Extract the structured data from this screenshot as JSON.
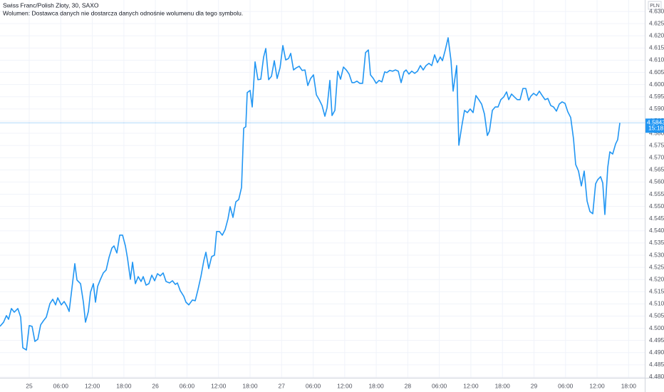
{
  "chart_data": {
    "type": "line",
    "title": "Swiss Franc/Polish Zloty, 30, SAXO",
    "subtitle": "Wolumen: Dostawca danych nie dostarcza danych odnośnie wolumenu dla tego symbolu.",
    "y_axis_unit": "PLN",
    "grid": true,
    "xlim": [
      -5.56,
      117.07
    ],
    "xticks": [
      {
        "value": 0,
        "label": "25"
      },
      {
        "value": 6,
        "label": "06:00"
      },
      {
        "value": 12,
        "label": "12:00"
      },
      {
        "value": 18,
        "label": "18:00"
      },
      {
        "value": 24,
        "label": "26"
      },
      {
        "value": 30,
        "label": "06:00"
      },
      {
        "value": 36,
        "label": "12:00"
      },
      {
        "value": 42,
        "label": "18:00"
      },
      {
        "value": 48,
        "label": "27"
      },
      {
        "value": 54,
        "label": "06:00"
      },
      {
        "value": 60,
        "label": "12:00"
      },
      {
        "value": 66,
        "label": "18:00"
      },
      {
        "value": 72,
        "label": "28"
      },
      {
        "value": 78,
        "label": "06:00"
      },
      {
        "value": 84,
        "label": "12:00"
      },
      {
        "value": 90,
        "label": "18:00"
      },
      {
        "value": 96,
        "label": "29"
      },
      {
        "value": 102,
        "label": "06:00"
      },
      {
        "value": 108,
        "label": "12:00"
      },
      {
        "value": 114,
        "label": "18:00"
      }
    ],
    "ylim": [
      4.4797,
      4.6347
    ],
    "yticks": [
      {
        "value": 4.48,
        "label": "4.4800"
      },
      {
        "value": 4.485,
        "label": "4.4850"
      },
      {
        "value": 4.49,
        "label": "4.4900"
      },
      {
        "value": 4.495,
        "label": "4.4950"
      },
      {
        "value": 4.5,
        "label": "4.5000"
      },
      {
        "value": 4.505,
        "label": "4.5050"
      },
      {
        "value": 4.51,
        "label": "4.5100"
      },
      {
        "value": 4.515,
        "label": "4.5150"
      },
      {
        "value": 4.52,
        "label": "4.5200"
      },
      {
        "value": 4.525,
        "label": "4.5250"
      },
      {
        "value": 4.53,
        "label": "4.5300"
      },
      {
        "value": 4.535,
        "label": "4.5350"
      },
      {
        "value": 4.54,
        "label": "4.5400"
      },
      {
        "value": 4.545,
        "label": "4.5450"
      },
      {
        "value": 4.55,
        "label": "4.5500"
      },
      {
        "value": 4.555,
        "label": "4.5550"
      },
      {
        "value": 4.56,
        "label": "4.5600"
      },
      {
        "value": 4.565,
        "label": "4.5650"
      },
      {
        "value": 4.57,
        "label": "4.5700"
      },
      {
        "value": 4.575,
        "label": "4.5750"
      },
      {
        "value": 4.58,
        "label": "4.5800"
      },
      {
        "value": 4.585,
        "label": "4.5850"
      },
      {
        "value": 4.59,
        "label": "4.5900"
      },
      {
        "value": 4.595,
        "label": "4.5950"
      },
      {
        "value": 4.6,
        "label": "4.6000"
      },
      {
        "value": 4.605,
        "label": "4.6050"
      },
      {
        "value": 4.61,
        "label": "4.6100"
      },
      {
        "value": 4.615,
        "label": "4.6150"
      },
      {
        "value": 4.62,
        "label": "4.6200"
      },
      {
        "value": 4.625,
        "label": "4.6250"
      },
      {
        "value": 4.63,
        "label": "4.6300"
      }
    ],
    "price_marker": {
      "value": 4.5843,
      "label": "4.5843",
      "countdown": "15:18",
      "color": "#2196f3"
    },
    "x": [
      -5.56,
      -4.88,
      -4.34,
      -3.93,
      -3.39,
      -2.85,
      -2.17,
      -1.63,
      -1.22,
      -0.54,
      0,
      0.54,
      1.08,
      1.63,
      2.17,
      2.71,
      3.25,
      3.93,
      4.47,
      5.01,
      5.42,
      6.1,
      6.64,
      7.18,
      7.59,
      8.13,
      8.67,
      9.08,
      9.76,
      10.3,
      10.7,
      11.25,
      11.65,
      12.2,
      12.6,
      13.01,
      13.55,
      14.09,
      14.63,
      15.18,
      15.72,
      16.12,
      16.67,
      17.21,
      17.75,
      18.29,
      18.7,
      19.24,
      19.65,
      20.19,
      20.73,
      21.27,
      21.68,
      22.22,
      22.76,
      23.31,
      23.85,
      24.39,
      24.93,
      25.47,
      26.02,
      26.69,
      27.24,
      27.78,
      28.18,
      28.73,
      29.4,
      29.81,
      30.35,
      31.03,
      31.57,
      32.11,
      32.65,
      33.2,
      33.6,
      34.14,
      34.69,
      35.23,
      35.64,
      36.18,
      36.72,
      37.26,
      37.8,
      38.21,
      38.75,
      39.3,
      39.84,
      40.38,
      40.79,
      41.19,
      41.46,
      42.01,
      42.41,
      42.95,
      43.5,
      44.04,
      44.58,
      44.99,
      45.53,
      46.07,
      46.61,
      47.15,
      47.7,
      48.24,
      48.78,
      49.32,
      49.73,
      50.27,
      50.81,
      51.35,
      51.9,
      52.44,
      52.98,
      53.52,
      54.06,
      54.61,
      55.15,
      55.69,
      56.23,
      56.64,
      57.18,
      57.59,
      58.13,
      58.67,
      59.21,
      59.76,
      60.3,
      60.84,
      61.38,
      61.79,
      62.33,
      62.87,
      63.41,
      63.96,
      64.5,
      64.9,
      65.45,
      65.99,
      66.53,
      67.07,
      67.61,
      68.02,
      68.56,
      69.11,
      69.65,
      70.19,
      70.73,
      71.27,
      71.68,
      72.22,
      72.76,
      73.31,
      73.85,
      74.39,
      74.93,
      75.47,
      76.02,
      76.56,
      77.1,
      77.64,
      78.18,
      78.59,
      79.13,
      79.67,
      80.22,
      80.62,
      81.3,
      81.71,
      82.25,
      82.79,
      83.33,
      83.87,
      84.42,
      84.96,
      85.5,
      86.04,
      86.58,
      87.13,
      87.53,
      88.08,
      88.62,
      89.16,
      89.7,
      90.24,
      90.79,
      91.19,
      91.73,
      92.28,
      92.82,
      93.36,
      93.9,
      94.44,
      94.99,
      95.39,
      95.93,
      96.48,
      97.02,
      97.56,
      98.1,
      98.64,
      99.19,
      99.73,
      100.27,
      100.81,
      101.35,
      101.9,
      102.44,
      102.98,
      103.52,
      103.93,
      104.47,
      105.01,
      105.55,
      106.1,
      106.64,
      107.18,
      107.72,
      108.13,
      108.67,
      109.08,
      109.48,
      110.03,
      110.43,
      110.97,
      111.52,
      111.92,
      112.33
    ],
    "series": [
      {
        "color": "#2196f3",
        "values": [
          4.5008,
          4.5025,
          4.5052,
          4.5037,
          4.5081,
          4.5066,
          4.5081,
          4.5046,
          4.492,
          4.4911,
          4.5011,
          4.5008,
          4.4946,
          4.4955,
          4.5014,
          4.5031,
          4.5046,
          4.5101,
          4.5119,
          4.5096,
          4.5125,
          4.5096,
          4.511,
          4.509,
          4.5069,
          4.5166,
          4.5265,
          4.5198,
          4.5183,
          4.5107,
          4.5025,
          4.5069,
          4.5148,
          4.5183,
          4.5107,
          4.5172,
          4.5201,
          4.5227,
          4.5239,
          4.5291,
          4.5329,
          4.5338,
          4.5309,
          4.5382,
          4.5382,
          4.5338,
          4.5286,
          4.5201,
          4.5271,
          4.5183,
          4.5212,
          4.5192,
          4.5212,
          4.5177,
          4.5183,
          4.5218,
          4.5195,
          4.5224,
          4.5215,
          4.5227,
          4.5192,
          4.5186,
          4.5195,
          4.518,
          4.5186,
          4.5154,
          4.5131,
          4.5107,
          4.5096,
          4.5116,
          4.5113,
          4.516,
          4.5212,
          4.5277,
          4.5312,
          4.5245,
          4.5294,
          4.53,
          4.5397,
          4.5397,
          4.5382,
          4.5405,
          4.5449,
          4.5499,
          4.5455,
          4.5519,
          4.5528,
          4.5578,
          4.5821,
          4.5827,
          4.5967,
          4.5976,
          4.5908,
          4.6093,
          4.602,
          4.6022,
          4.6113,
          4.6148,
          4.602,
          4.6034,
          4.6098,
          4.6025,
          4.6069,
          4.616,
          4.6101,
          4.6107,
          4.6128,
          4.606,
          4.6069,
          4.6075,
          4.6058,
          4.606,
          4.5996,
          4.6025,
          4.604,
          4.5958,
          4.5938,
          4.5914,
          4.587,
          4.5905,
          4.6017,
          4.5873,
          4.5894,
          4.6055,
          4.6022,
          4.6072,
          4.606,
          4.6043,
          4.6008,
          4.6008,
          4.6014,
          4.6005,
          4.6005,
          4.6131,
          4.6142,
          4.604,
          4.6025,
          4.6005,
          4.6017,
          4.6011,
          4.6052,
          4.6049,
          4.6058,
          4.6055,
          4.606,
          4.6055,
          4.6008,
          4.6052,
          4.606,
          4.6043,
          4.6055,
          4.6046,
          4.6055,
          4.6078,
          4.606,
          4.6078,
          4.6087,
          4.6078,
          4.6122,
          4.609,
          4.6113,
          4.6098,
          4.6142,
          4.6192,
          4.6098,
          4.5973,
          4.6078,
          4.5751,
          4.5827,
          4.5894,
          4.5885,
          4.59,
          4.5885,
          4.5955,
          4.5938,
          4.592,
          4.5879,
          4.5791,
          4.5809,
          4.5894,
          4.5908,
          4.5908,
          4.5938,
          4.5949,
          4.597,
          4.5938,
          4.5961,
          4.5949,
          4.5938,
          4.5938,
          4.5984,
          4.5984,
          4.5935,
          4.5952,
          4.5964,
          4.5955,
          4.5973,
          4.5955,
          4.5938,
          4.5943,
          4.5914,
          4.5908,
          4.5891,
          4.592,
          4.5929,
          4.5923,
          4.5888,
          4.5865,
          4.5777,
          4.5672,
          4.5645,
          4.5584,
          4.5645,
          4.5522,
          4.5479,
          4.547,
          4.5593,
          4.561,
          4.5622,
          4.5596,
          4.5467,
          4.566,
          4.5724,
          4.5715,
          4.5756,
          4.5774,
          4.5843
        ]
      }
    ]
  }
}
